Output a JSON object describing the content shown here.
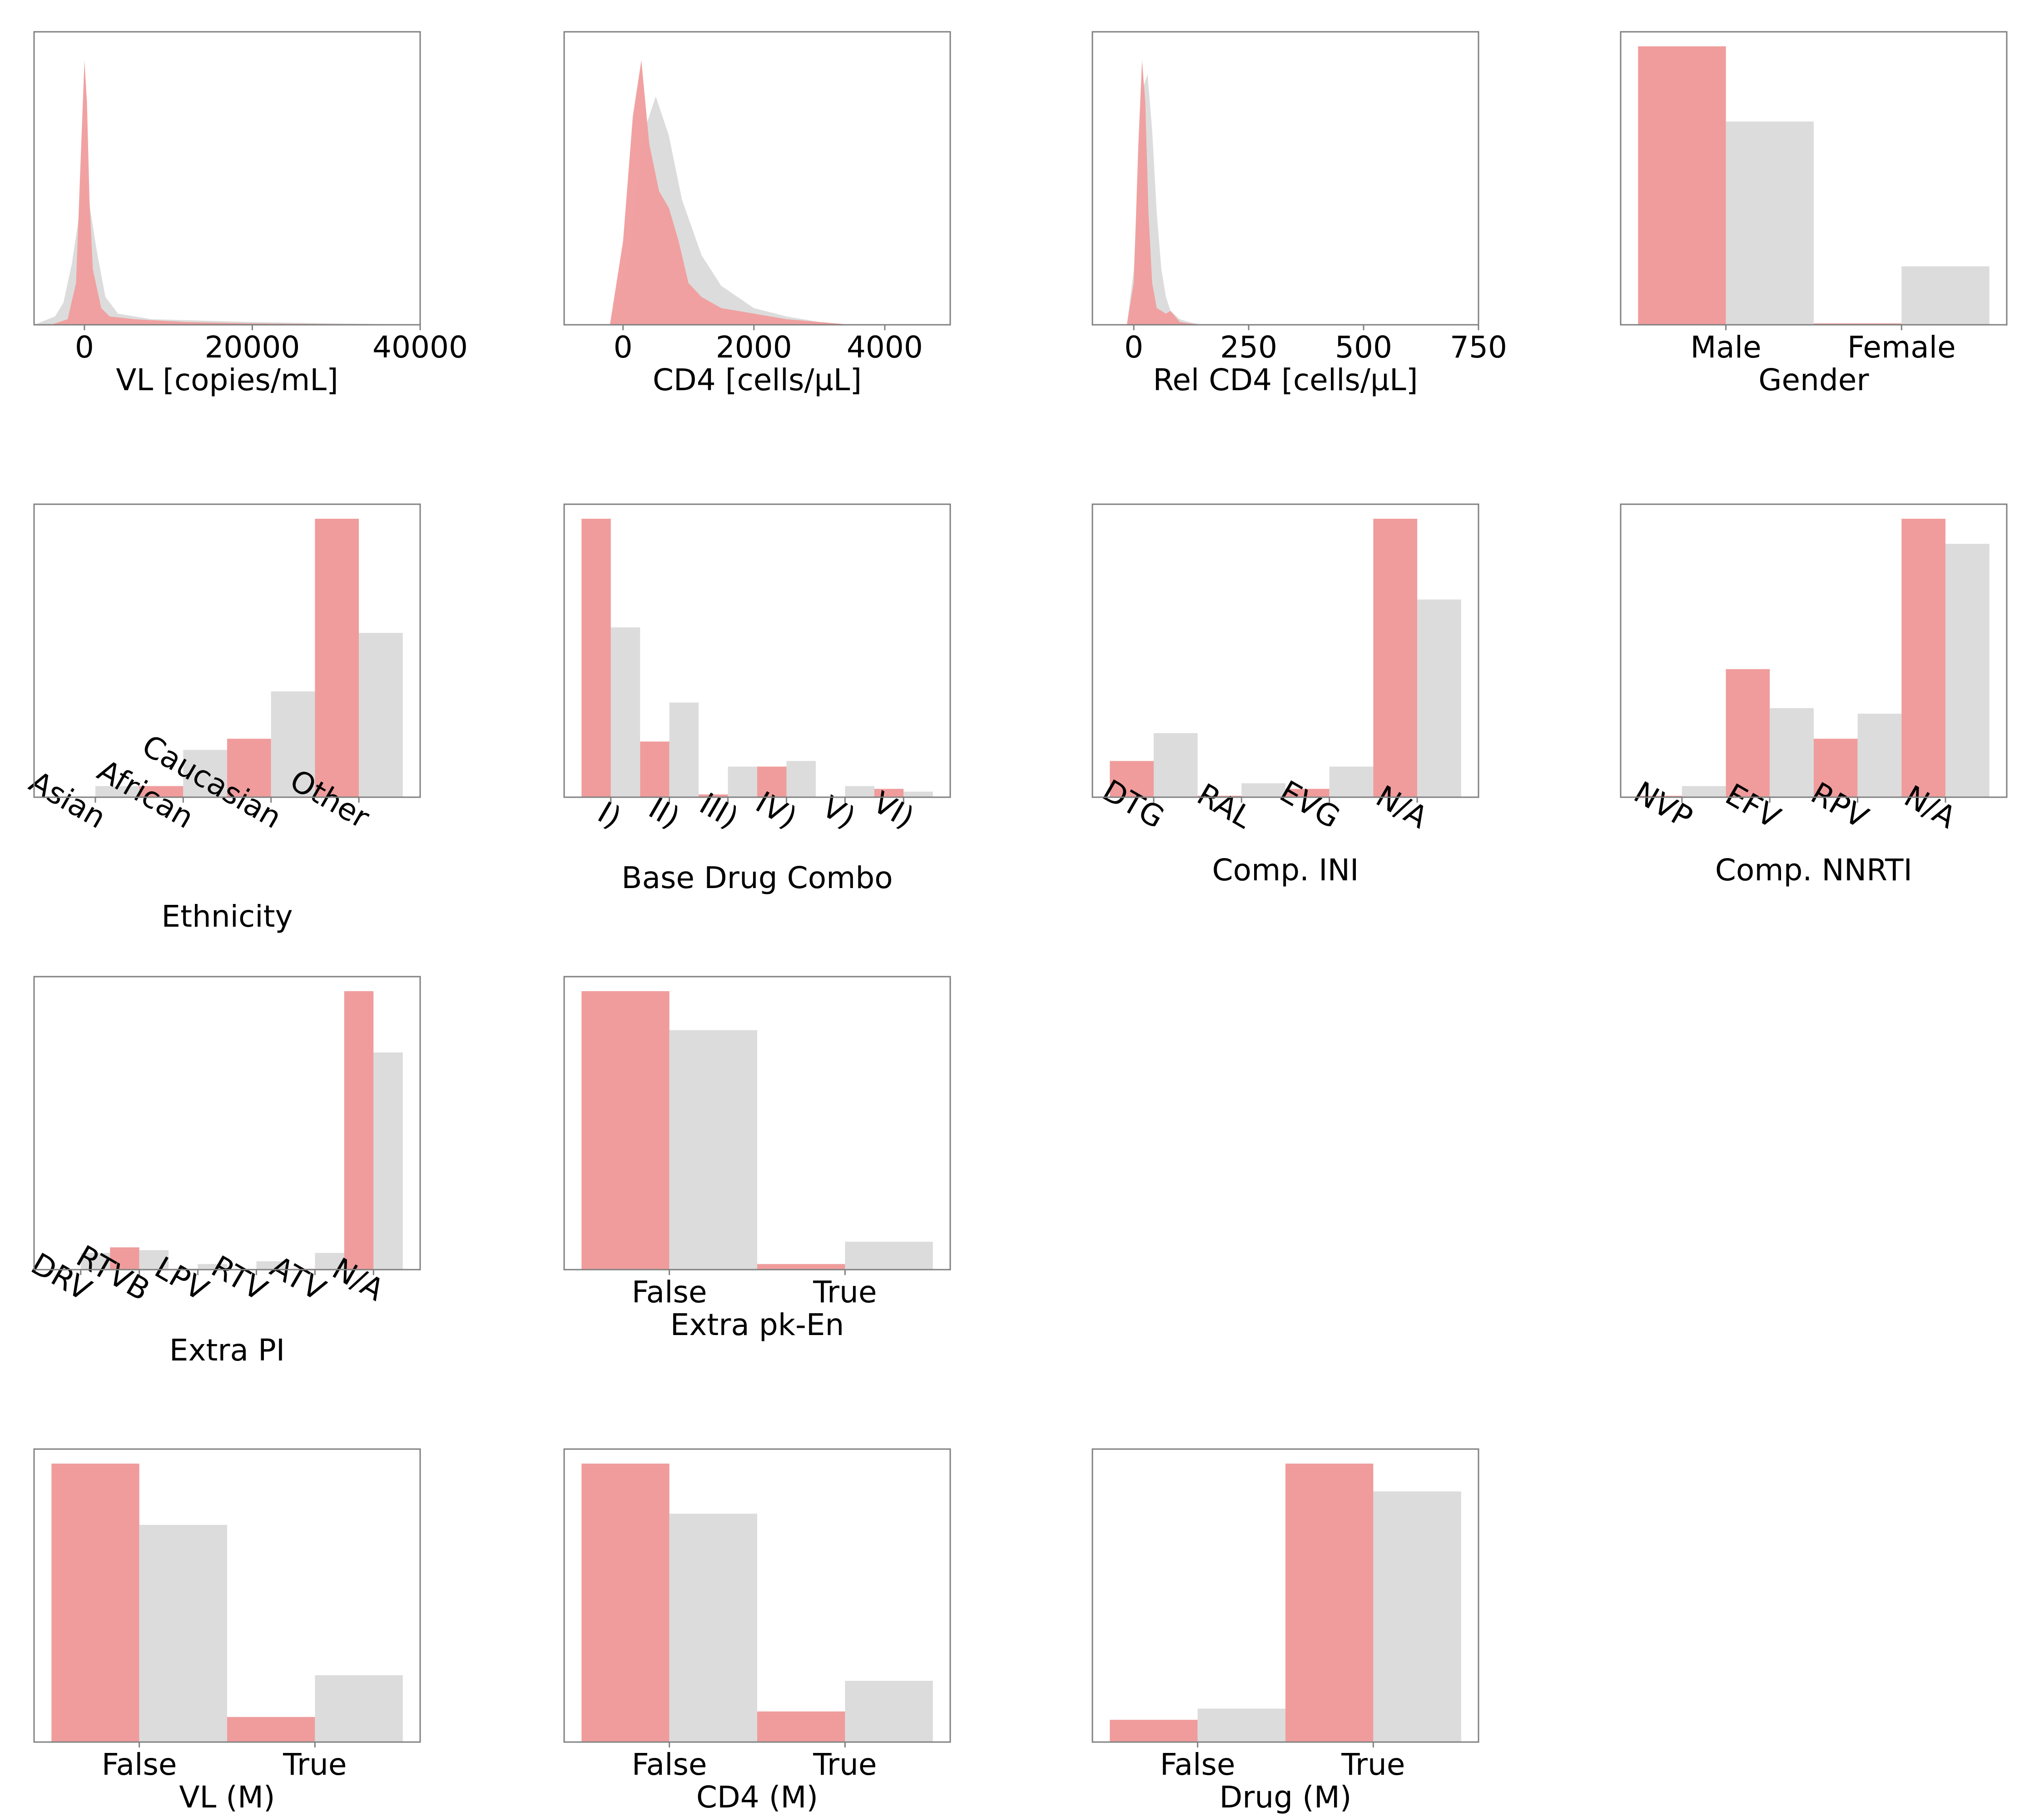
{
  "colors": {
    "treatment": "#f09c9c",
    "reference": "#dcdcdc"
  },
  "chart_data": [
    {
      "type": "area",
      "name": "vl-density",
      "xlabel": "VL [copies/mL]",
      "xlim": [
        -6000,
        40000
      ],
      "xticks": [
        0,
        20000,
        40000
      ],
      "ylim": [
        0,
        1
      ],
      "series": [
        {
          "name": "reference",
          "x": [
            -6000,
            -3500,
            -2500,
            -1500,
            -500,
            0,
            500,
            1500,
            2500,
            4000,
            8000,
            20000,
            40000
          ],
          "y": [
            0,
            0.03,
            0.08,
            0.22,
            0.42,
            0.52,
            0.45,
            0.26,
            0.1,
            0.04,
            0.02,
            0.01,
            0
          ]
        },
        {
          "name": "treatment",
          "x": [
            -4000,
            -2000,
            -1000,
            -500,
            0,
            300,
            600,
            1000,
            2000,
            3000,
            6000,
            12000,
            20000,
            40000
          ],
          "y": [
            0,
            0.02,
            0.15,
            0.55,
            0.95,
            0.8,
            0.45,
            0.2,
            0.06,
            0.03,
            0.02,
            0.01,
            0.005,
            0
          ]
        }
      ]
    },
    {
      "type": "area",
      "name": "cd4-density",
      "xlabel": "CD4 [cells/µL]",
      "xlim": [
        -900,
        5000
      ],
      "xticks": [
        0,
        2000,
        4000
      ],
      "ylim": [
        0,
        1
      ],
      "series": [
        {
          "name": "reference",
          "x": [
            -200,
            100,
            300,
            500,
            700,
            900,
            1200,
            1500,
            2000,
            2500,
            3000,
            3500
          ],
          "y": [
            0,
            0.25,
            0.68,
            0.82,
            0.68,
            0.45,
            0.25,
            0.14,
            0.06,
            0.03,
            0.01,
            0
          ]
        },
        {
          "name": "treatment",
          "x": [
            -200,
            0,
            150,
            280,
            400,
            550,
            700,
            850,
            1000,
            1200,
            1500,
            2000,
            2500,
            3000,
            3500
          ],
          "y": [
            0,
            0.3,
            0.75,
            0.95,
            0.65,
            0.48,
            0.42,
            0.3,
            0.15,
            0.1,
            0.06,
            0.04,
            0.02,
            0.01,
            0
          ]
        }
      ]
    },
    {
      "type": "area",
      "name": "rel-cd4-density",
      "xlabel": "Rel CD4 [cells/µL]",
      "xlim": [
        -90,
        750
      ],
      "xticks": [
        0,
        250,
        500,
        750
      ],
      "ylim": [
        0,
        1
      ],
      "series": [
        {
          "name": "reference",
          "x": [
            -15,
            0,
            10,
            20,
            30,
            40,
            50,
            60,
            70,
            80,
            100,
            120,
            150
          ],
          "y": [
            0,
            0.2,
            0.55,
            0.85,
            0.9,
            0.7,
            0.4,
            0.2,
            0.1,
            0.05,
            0.02,
            0.01,
            0
          ]
        },
        {
          "name": "treatment",
          "x": [
            -15,
            0,
            10,
            18,
            25,
            32,
            40,
            50,
            60,
            70,
            80,
            90,
            100,
            120,
            150
          ],
          "y": [
            0,
            0.15,
            0.65,
            0.95,
            0.8,
            0.4,
            0.15,
            0.06,
            0.05,
            0.04,
            0.05,
            0.03,
            0.01,
            0.005,
            0
          ]
        }
      ]
    },
    {
      "type": "bar",
      "name": "gender",
      "xlabel": "Gender",
      "categories": [
        "Male",
        "Female"
      ],
      "ylim": [
        0,
        1
      ],
      "tick_rotation": 0,
      "series": [
        {
          "name": "treatment",
          "values": [
            1.0,
            0.005
          ]
        },
        {
          "name": "reference",
          "values": [
            0.73,
            0.21
          ]
        }
      ]
    },
    {
      "type": "bar",
      "name": "ethnicity",
      "xlabel": "Ethnicity",
      "categories": [
        "Asian",
        "African",
        "Caucasian",
        "Other"
      ],
      "ylim": [
        0,
        1
      ],
      "tick_rotation": 30,
      "series": [
        {
          "name": "treatment",
          "values": [
            0.0,
            0.04,
            0.21,
            1.0
          ]
        },
        {
          "name": "reference",
          "values": [
            0.04,
            0.17,
            0.38,
            0.59
          ]
        }
      ]
    },
    {
      "type": "bar",
      "name": "base-drug-combo",
      "xlabel": "Base Drug Combo",
      "categories": [
        "I)",
        "II)",
        "III)",
        "IV)",
        "V)",
        "VI)"
      ],
      "ylim": [
        0,
        1
      ],
      "tick_rotation": 30,
      "series": [
        {
          "name": "treatment",
          "values": [
            1.0,
            0.2,
            0.01,
            0.11,
            0.0,
            0.03
          ]
        },
        {
          "name": "reference",
          "values": [
            0.61,
            0.34,
            0.11,
            0.13,
            0.04,
            0.02
          ]
        }
      ]
    },
    {
      "type": "bar",
      "name": "comp-ini",
      "xlabel": "Comp. INI",
      "categories": [
        "DTG",
        "RAL",
        "EVG",
        "N/A"
      ],
      "ylim": [
        0,
        1
      ],
      "tick_rotation": 30,
      "series": [
        {
          "name": "treatment",
          "values": [
            0.13,
            0.005,
            0.03,
            1.0
          ]
        },
        {
          "name": "reference",
          "values": [
            0.23,
            0.05,
            0.11,
            0.71
          ]
        }
      ]
    },
    {
      "type": "bar",
      "name": "comp-nnrti",
      "xlabel": "Comp. NNRTI",
      "categories": [
        "NVP",
        "EFV",
        "RPV",
        "N/A"
      ],
      "ylim": [
        0,
        1
      ],
      "tick_rotation": 30,
      "series": [
        {
          "name": "treatment",
          "values": [
            0.005,
            0.46,
            0.21,
            1.0
          ]
        },
        {
          "name": "reference",
          "values": [
            0.04,
            0.32,
            0.3,
            0.91
          ]
        }
      ]
    },
    {
      "type": "bar",
      "name": "extra-pi",
      "xlabel": "Extra PI",
      "categories": [
        "DRV",
        "RTVB",
        "LPV",
        "RTV",
        "ATV",
        "N/A"
      ],
      "ylim": [
        0,
        1
      ],
      "tick_rotation": 30,
      "series": [
        {
          "name": "treatment",
          "values": [
            0.0,
            0.08,
            0.003,
            0.0,
            0.003,
            1.0
          ]
        },
        {
          "name": "reference",
          "values": [
            0.06,
            0.07,
            0.02,
            0.03,
            0.06,
            0.78
          ]
        }
      ]
    },
    {
      "type": "bar",
      "name": "extra-pk-en",
      "xlabel": "Extra pk-En",
      "categories": [
        "False",
        "True"
      ],
      "ylim": [
        0,
        1
      ],
      "tick_rotation": 0,
      "series": [
        {
          "name": "treatment",
          "values": [
            1.0,
            0.02
          ]
        },
        {
          "name": "reference",
          "values": [
            0.86,
            0.1
          ]
        }
      ]
    },
    {
      "type": "bar",
      "name": "vl-m",
      "xlabel": "VL (M)",
      "categories": [
        "False",
        "True"
      ],
      "ylim": [
        0,
        1
      ],
      "tick_rotation": 0,
      "series": [
        {
          "name": "treatment",
          "values": [
            1.0,
            0.09
          ]
        },
        {
          "name": "reference",
          "values": [
            0.78,
            0.24
          ]
        }
      ]
    },
    {
      "type": "bar",
      "name": "cd4-m",
      "xlabel": "CD4 (M)",
      "categories": [
        "False",
        "True"
      ],
      "ylim": [
        0,
        1
      ],
      "tick_rotation": 0,
      "series": [
        {
          "name": "treatment",
          "values": [
            1.0,
            0.11
          ]
        },
        {
          "name": "reference",
          "values": [
            0.82,
            0.22
          ]
        }
      ]
    },
    {
      "type": "bar",
      "name": "drug-m",
      "xlabel": "Drug (M)",
      "categories": [
        "False",
        "True"
      ],
      "ylim": [
        0,
        1
      ],
      "tick_rotation": 0,
      "series": [
        {
          "name": "treatment",
          "values": [
            0.08,
            1.0
          ]
        },
        {
          "name": "reference",
          "values": [
            0.12,
            0.9
          ]
        }
      ]
    }
  ]
}
